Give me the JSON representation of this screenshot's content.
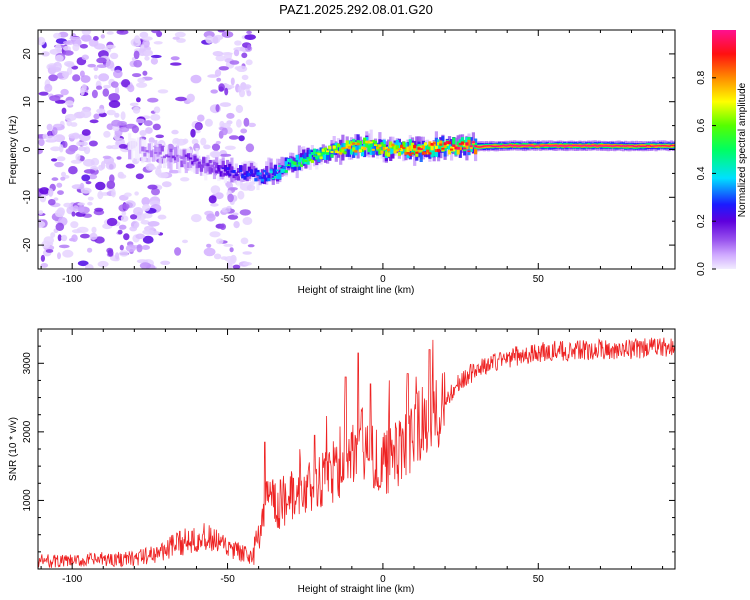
{
  "title": "PAZ1.2025.292.08.01.G20",
  "colors": {
    "snr_line": "#ee2222",
    "axis": "#000000",
    "spectral_track": "#ff2020",
    "speckle": "#9a55ee"
  },
  "chart_data": [
    {
      "type": "heatmap",
      "title": "PAZ1.2025.292.08.01.G20",
      "xlabel": "Height of straight line (km)",
      "ylabel": "Frequency (Hz)",
      "xlim": [
        -111,
        94
      ],
      "ylim": [
        -25,
        25
      ],
      "x_ticks": [
        -100,
        -50,
        0,
        50
      ],
      "x_tick_labels": [
        "-100",
        "-50",
        "0",
        "50"
      ],
      "y_ticks": [
        20,
        10,
        0,
        -10,
        -20
      ],
      "y_tick_labels": [
        "20",
        "10",
        "0",
        "-10",
        "-20"
      ],
      "colorbar": {
        "label": "Normalized spectral amplitude",
        "range": [
          0,
          1
        ],
        "ticks": [
          0.0,
          0.2,
          0.4,
          0.6,
          0.8
        ],
        "tick_labels": [
          "0.0",
          "0.2",
          "0.4",
          "0.6",
          "0.8"
        ],
        "colormap": "hsv (violet - blue - cyan - green - yellow - red - magenta)"
      },
      "ridge": {
        "x": [
          -80,
          -70,
          -60,
          -50,
          -40,
          -35,
          -30,
          -25,
          -20,
          -15,
          -10,
          -5,
          0,
          5,
          10,
          20,
          30,
          40,
          50,
          60,
          70,
          80,
          94
        ],
        "frequency": [
          0,
          -1,
          -3,
          -4.5,
          -5.5,
          -5,
          -3,
          -2,
          -1,
          0,
          0.5,
          1,
          0,
          0,
          0,
          0.5,
          0.6,
          0.8,
          0.8,
          0.8,
          0.8,
          0.7,
          0.8
        ],
        "amplitude": [
          0.05,
          0.1,
          0.15,
          0.2,
          0.3,
          0.4,
          0.5,
          0.55,
          0.65,
          0.7,
          0.8,
          0.7,
          0.75,
          0.8,
          0.9,
          0.9,
          0.95,
          1.0,
          1.0,
          1.0,
          1.0,
          0.98,
          0.95
        ]
      },
      "noise_region": {
        "x_range": [
          -111,
          -42
        ],
        "amplitude": 0.05
      }
    },
    {
      "type": "line",
      "title": "",
      "xlabel": "Height of straight line (km)",
      "ylabel": "SNR (10 * v/v)",
      "xlim": [
        -111,
        94
      ],
      "ylim": [
        0,
        3500
      ],
      "x_ticks": [
        -100,
        -50,
        0,
        50
      ],
      "x_tick_labels": [
        "-100",
        "-50",
        "0",
        "50"
      ],
      "y_ticks": [
        1000,
        2000,
        3000
      ],
      "y_tick_labels": [
        "1000",
        "2000",
        "3000"
      ],
      "series": [
        {
          "name": "SNR",
          "x": [
            -111,
            -100,
            -90,
            -80,
            -75,
            -70,
            -65,
            -60,
            -55,
            -50,
            -45,
            -42,
            -40,
            -38,
            -36,
            -34,
            -32,
            -30,
            -25,
            -20,
            -15,
            -10,
            -8,
            -5,
            0,
            5,
            8,
            10,
            15,
            20,
            25,
            30,
            35,
            40,
            45,
            50,
            55,
            60,
            65,
            70,
            75,
            80,
            85,
            90,
            94
          ],
          "values": [
            120,
            110,
            140,
            150,
            200,
            280,
            380,
            480,
            420,
            300,
            220,
            180,
            400,
            900,
            1200,
            800,
            1000,
            1050,
            1150,
            1250,
            1450,
            1650,
            1900,
            1750,
            1500,
            1700,
            1800,
            2050,
            2150,
            2450,
            2750,
            2900,
            3000,
            3080,
            3120,
            3150,
            3180,
            3180,
            3190,
            3200,
            3200,
            3210,
            3230,
            3220,
            3240
          ],
          "spikes": {
            "x": [
              -38,
              -33,
              -22,
              -12,
              -8,
              -4,
              2,
              8,
              15
            ],
            "values": [
              1850,
              1300,
              1950,
              2800,
              3150,
              2700,
              2750,
              2850,
              3200
            ]
          }
        }
      ]
    }
  ]
}
